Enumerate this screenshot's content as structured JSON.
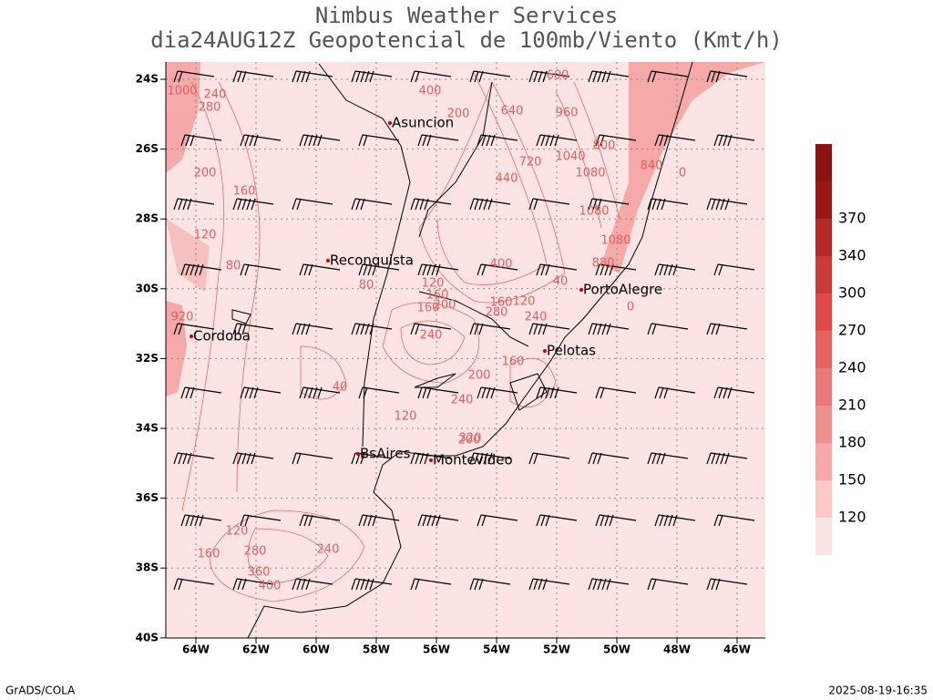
{
  "header": {
    "title": "Nimbus Weather Services",
    "subtitle": "dia24AUG12Z Geopotencial de 100mb/Viento (Kmt/h)"
  },
  "axes": {
    "lat": [
      "24S",
      "26S",
      "28S",
      "30S",
      "32S",
      "34S",
      "36S",
      "38S",
      "40S"
    ],
    "lon": [
      "64W",
      "62W",
      "60W",
      "58W",
      "56W",
      "54W",
      "52W",
      "50W",
      "48W",
      "46W"
    ]
  },
  "cities": [
    "Asuncion",
    "Reconquista",
    "Cordoba",
    "PortoAlegre",
    "Pelotas",
    "BsAires",
    "Montevideo"
  ],
  "contour_labels": [
    "1000",
    "240",
    "280",
    "200",
    "160",
    "120",
    "80",
    "80",
    "40",
    "120",
    "160",
    "200",
    "240",
    "120",
    "160",
    "200",
    "240",
    "320",
    "400",
    "640",
    "960",
    "1040",
    "720",
    "800",
    "1080",
    "1080",
    "880",
    "440",
    "400",
    "120",
    "160",
    "280",
    "240",
    "160",
    "200",
    "200",
    "120",
    "160",
    "240",
    "280",
    "360",
    "400",
    "920",
    "1080",
    "40",
    "0",
    "0",
    "840",
    "600"
  ],
  "colorbar": {
    "labels": [
      "120",
      "150",
      "180",
      "210",
      "240",
      "270",
      "300",
      "340",
      "370"
    ],
    "colors": [
      "#fde4e4",
      "#fcc8c8",
      "#f7a7a7",
      "#ef9090",
      "#e97878",
      "#e56262",
      "#e04a4a",
      "#c93a3a",
      "#b42a2a",
      "#991717",
      "#8a1212"
    ]
  },
  "footer": {
    "left": "GrADS/COLA",
    "right": "2025-08-19-16:35"
  }
}
